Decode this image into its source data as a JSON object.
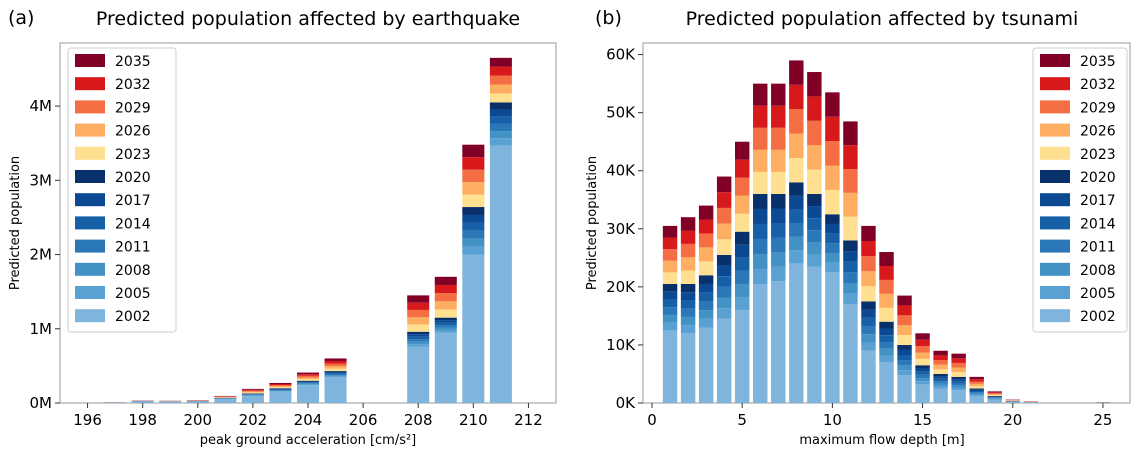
{
  "colors": {
    "2002": "#7fb5dc",
    "2005": "#5aa1d3",
    "2008": "#4292c6",
    "2011": "#2b78b8",
    "2014": "#1660a8",
    "2017": "#0b4a93",
    "2020": "#08306b",
    "2023": "#fee090",
    "2026": "#fdae61",
    "2029": "#f46d43",
    "2032": "#d7191c",
    "2035": "#800026"
  },
  "chart_data": [
    {
      "type": "bar",
      "stacked": true,
      "panel_label": "(a)",
      "title": "Predicted population affected by earthquake",
      "xlabel": "peak ground acceleration [cm/s²]",
      "ylabel": "Predicted population",
      "xlim": [
        195,
        213
      ],
      "ylim": [
        0,
        4850000
      ],
      "xticks": [
        196,
        198,
        200,
        202,
        204,
        206,
        208,
        210,
        212
      ],
      "yticks": [
        {
          "value": 0,
          "label": "0M"
        },
        {
          "value": 1000000,
          "label": "1M"
        },
        {
          "value": 2000000,
          "label": "2M"
        },
        {
          "value": 3000000,
          "label": "3M"
        },
        {
          "value": 4000000,
          "label": "4M"
        }
      ],
      "legend_position": "top-left",
      "legend": [
        "2035",
        "2032",
        "2029",
        "2026",
        "2023",
        "2020",
        "2017",
        "2014",
        "2011",
        "2008",
        "2005",
        "2002"
      ],
      "x": [
        197,
        198,
        199,
        200,
        201,
        202,
        203,
        204,
        205,
        208,
        209,
        210,
        211
      ],
      "totals_2035": [
        10000,
        35000,
        30000,
        40000,
        95000,
        190000,
        270000,
        410000,
        600000,
        1450000,
        1700000,
        3480000,
        4650000
      ],
      "base_2002": [
        5000,
        20000,
        15000,
        20000,
        50000,
        90000,
        150000,
        240000,
        350000,
        760000,
        950000,
        2000000,
        3470000
      ],
      "totals_2020": [
        8000,
        28000,
        22000,
        28000,
        70000,
        130000,
        200000,
        300000,
        430000,
        960000,
        1150000,
        2640000,
        4050000
      ]
    },
    {
      "type": "bar",
      "stacked": true,
      "panel_label": "(b)",
      "title": "Predicted population affected by tsunami",
      "xlabel": "maximum flow depth [m]",
      "ylabel": "Predicted population",
      "xlim": [
        -0.5,
        26.5
      ],
      "ylim": [
        0,
        62000
      ],
      "xticks": [
        0,
        5,
        10,
        15,
        20,
        25
      ],
      "yticks": [
        {
          "value": 0,
          "label": "0K"
        },
        {
          "value": 10000,
          "label": "10K"
        },
        {
          "value": 20000,
          "label": "20K"
        },
        {
          "value": 30000,
          "label": "30K"
        },
        {
          "value": 40000,
          "label": "40K"
        },
        {
          "value": 50000,
          "label": "50K"
        },
        {
          "value": 60000,
          "label": "60K"
        }
      ],
      "legend_position": "top-right",
      "legend": [
        "2035",
        "2032",
        "2029",
        "2026",
        "2023",
        "2020",
        "2017",
        "2014",
        "2011",
        "2008",
        "2005",
        "2002"
      ],
      "x": [
        1,
        2,
        3,
        4,
        5,
        6,
        7,
        8,
        9,
        10,
        11,
        12,
        13,
        14,
        15,
        16,
        17,
        18,
        19,
        20,
        21,
        25
      ],
      "totals_2035": [
        30500,
        32000,
        34000,
        39000,
        45000,
        55000,
        55000,
        59000,
        57000,
        53500,
        48500,
        30500,
        26000,
        18500,
        12000,
        9000,
        8500,
        4500,
        2000,
        600,
        300,
        150
      ],
      "totals_2020": [
        20500,
        20500,
        22000,
        25500,
        29500,
        36000,
        36000,
        38000,
        36000,
        32500,
        28000,
        17500,
        14000,
        10000,
        6500,
        5000,
        4500,
        2500,
        1200,
        350,
        150,
        80
      ],
      "base_2002": [
        12500,
        12000,
        13000,
        14500,
        16000,
        20500,
        21000,
        24000,
        23500,
        22500,
        17000,
        9000,
        7000,
        4800,
        3200,
        2500,
        2200,
        1200,
        600,
        180,
        80,
        40
      ]
    }
  ]
}
